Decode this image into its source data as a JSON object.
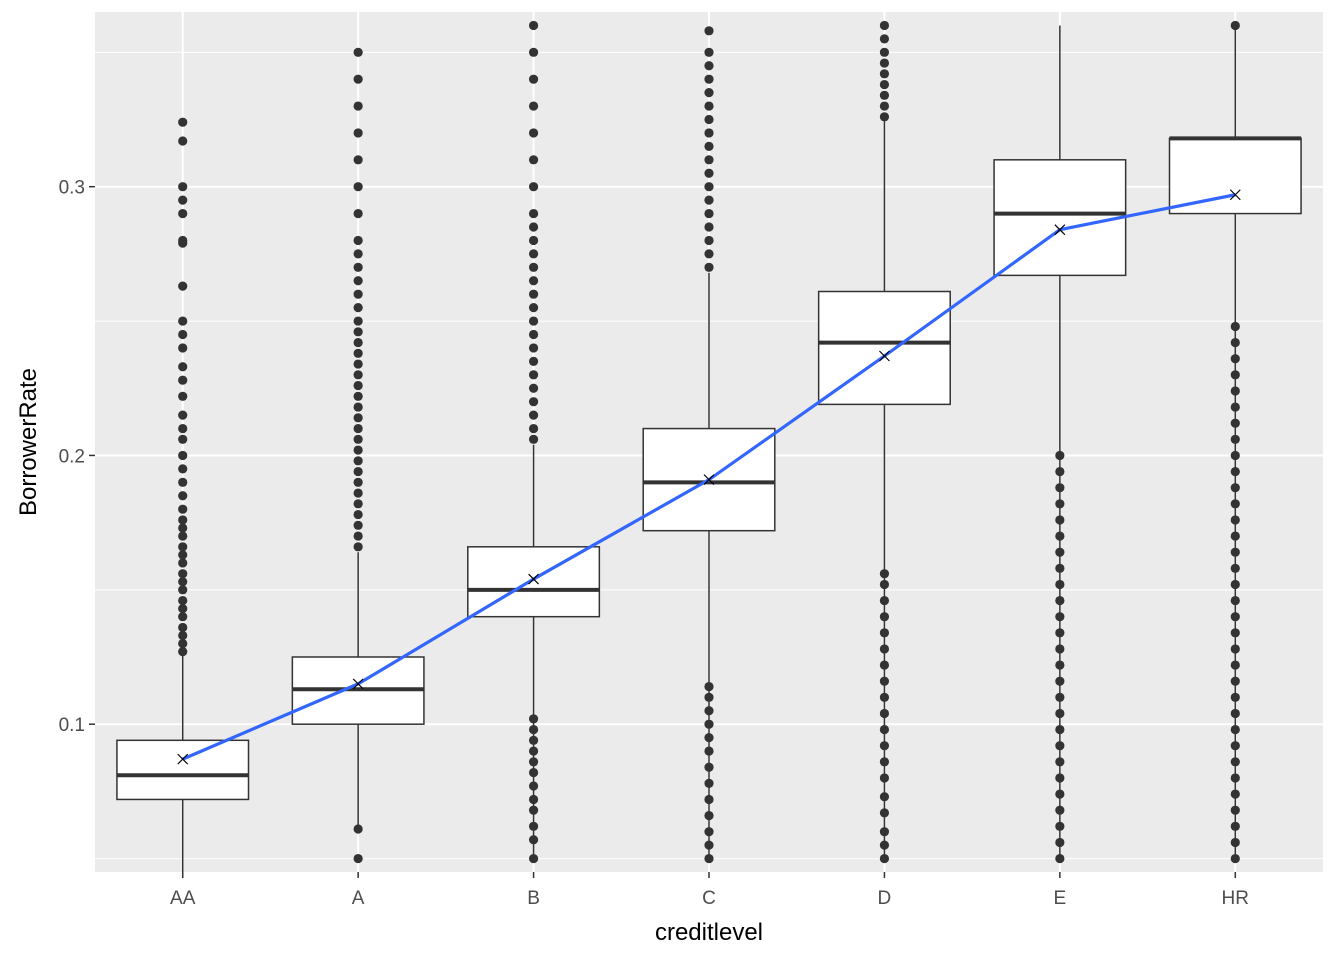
{
  "chart_data": {
    "type": "box",
    "xlabel": "creditlevel",
    "ylabel": "BorrowerRate",
    "categories": [
      "AA",
      "A",
      "B",
      "C",
      "D",
      "E",
      "HR"
    ],
    "ylim": [
      0.045,
      0.365
    ],
    "y_ticks": [
      0.1,
      0.2,
      0.3
    ],
    "y_tick_labels": [
      "0.1",
      "0.2",
      "0.3"
    ],
    "grid": true,
    "colors": {
      "panel": "#ebebeb",
      "grid_major": "#ffffff",
      "box_fill": "#ffffff",
      "box_line": "#333333",
      "outlier": "#333333",
      "mean_line": "#3366ff"
    },
    "boxes": [
      {
        "category": "AA",
        "whisker_low": 0.045,
        "q1": 0.072,
        "median": 0.081,
        "q3": 0.094,
        "whisker_high": 0.126,
        "mean": 0.087,
        "outliers": [
          0.127,
          0.13,
          0.133,
          0.136,
          0.14,
          0.143,
          0.146,
          0.15,
          0.153,
          0.156,
          0.16,
          0.163,
          0.166,
          0.17,
          0.173,
          0.176,
          0.18,
          0.185,
          0.19,
          0.195,
          0.2,
          0.206,
          0.21,
          0.215,
          0.222,
          0.228,
          0.233,
          0.24,
          0.245,
          0.25,
          0.263,
          0.279,
          0.28,
          0.29,
          0.295,
          0.3,
          0.317,
          0.324
        ]
      },
      {
        "category": "A",
        "whisker_low": 0.06,
        "q1": 0.1,
        "median": 0.113,
        "q3": 0.125,
        "whisker_high": 0.164,
        "mean": 0.115,
        "outliers": [
          0.05,
          0.061,
          0.166,
          0.17,
          0.174,
          0.178,
          0.182,
          0.186,
          0.19,
          0.194,
          0.198,
          0.202,
          0.206,
          0.21,
          0.214,
          0.218,
          0.222,
          0.226,
          0.23,
          0.234,
          0.238,
          0.242,
          0.246,
          0.25,
          0.255,
          0.26,
          0.265,
          0.27,
          0.275,
          0.28,
          0.29,
          0.3,
          0.31,
          0.32,
          0.33,
          0.34,
          0.35
        ]
      },
      {
        "category": "B",
        "whisker_low": 0.05,
        "q1": 0.14,
        "median": 0.15,
        "q3": 0.166,
        "whisker_high": 0.204,
        "mean": 0.154,
        "outliers": [
          0.05,
          0.057,
          0.062,
          0.068,
          0.072,
          0.077,
          0.082,
          0.086,
          0.09,
          0.094,
          0.098,
          0.102,
          0.206,
          0.21,
          0.215,
          0.22,
          0.225,
          0.23,
          0.235,
          0.24,
          0.245,
          0.25,
          0.255,
          0.26,
          0.265,
          0.27,
          0.275,
          0.28,
          0.285,
          0.29,
          0.3,
          0.31,
          0.32,
          0.33,
          0.34,
          0.35,
          0.36
        ]
      },
      {
        "category": "C",
        "whisker_low": 0.05,
        "q1": 0.172,
        "median": 0.19,
        "q3": 0.21,
        "whisker_high": 0.268,
        "mean": 0.191,
        "outliers": [
          0.05,
          0.055,
          0.06,
          0.066,
          0.072,
          0.078,
          0.084,
          0.09,
          0.095,
          0.1,
          0.105,
          0.11,
          0.114,
          0.27,
          0.275,
          0.28,
          0.285,
          0.29,
          0.295,
          0.3,
          0.305,
          0.31,
          0.315,
          0.32,
          0.325,
          0.33,
          0.335,
          0.34,
          0.345,
          0.35,
          0.358
        ]
      },
      {
        "category": "D",
        "whisker_low": 0.05,
        "q1": 0.219,
        "median": 0.242,
        "q3": 0.261,
        "whisker_high": 0.325,
        "mean": 0.237,
        "outliers": [
          0.05,
          0.055,
          0.06,
          0.067,
          0.073,
          0.08,
          0.086,
          0.092,
          0.098,
          0.104,
          0.11,
          0.116,
          0.122,
          0.128,
          0.134,
          0.14,
          0.146,
          0.152,
          0.156,
          0.326,
          0.33,
          0.334,
          0.338,
          0.342,
          0.346,
          0.35,
          0.355,
          0.36
        ]
      },
      {
        "category": "E",
        "whisker_low": 0.05,
        "q1": 0.267,
        "median": 0.29,
        "q3": 0.31,
        "whisker_high": 0.36,
        "mean": 0.284,
        "outliers": [
          0.05,
          0.056,
          0.062,
          0.068,
          0.074,
          0.08,
          0.086,
          0.092,
          0.098,
          0.104,
          0.11,
          0.116,
          0.122,
          0.128,
          0.134,
          0.14,
          0.146,
          0.152,
          0.158,
          0.164,
          0.17,
          0.176,
          0.182,
          0.188,
          0.194,
          0.2
        ]
      },
      {
        "category": "HR",
        "whisker_low": 0.05,
        "q1": 0.29,
        "median": 0.318,
        "q3": 0.318,
        "whisker_high": 0.36,
        "mean": 0.297,
        "outliers": [
          0.05,
          0.056,
          0.062,
          0.068,
          0.074,
          0.08,
          0.086,
          0.092,
          0.098,
          0.104,
          0.11,
          0.116,
          0.122,
          0.128,
          0.134,
          0.14,
          0.146,
          0.152,
          0.158,
          0.164,
          0.17,
          0.176,
          0.182,
          0.188,
          0.194,
          0.2,
          0.206,
          0.212,
          0.218,
          0.224,
          0.23,
          0.236,
          0.242,
          0.248,
          0.36
        ]
      }
    ]
  }
}
